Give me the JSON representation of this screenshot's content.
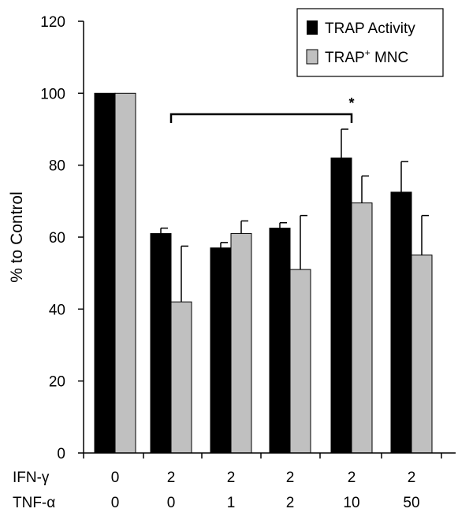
{
  "chart_data": {
    "type": "bar",
    "ylabel": "% to Control",
    "ylim": [
      0,
      120
    ],
    "yticks": [
      "0",
      "20",
      "40",
      "60",
      "80",
      "100",
      "120"
    ],
    "row_labels": [
      "IFN-γ",
      "TNF-α"
    ],
    "groups": [
      {
        "ifn": "0",
        "tnf": "0"
      },
      {
        "ifn": "2",
        "tnf": "0"
      },
      {
        "ifn": "2",
        "tnf": "1"
      },
      {
        "ifn": "2",
        "tnf": "2"
      },
      {
        "ifn": "2",
        "tnf": "10"
      },
      {
        "ifn": "2",
        "tnf": "50"
      }
    ],
    "series": [
      {
        "name": "TRAP Activity",
        "color": "#000000",
        "values": [
          100,
          61,
          57,
          62.5,
          82,
          72.5
        ],
        "errors": [
          0,
          1.5,
          1.5,
          1.5,
          8,
          8.5
        ]
      },
      {
        "name_main": "TRAP",
        "name_sup": "+",
        "name_rest": " MNC",
        "color": "#c0c0c0",
        "values": [
          100,
          42,
          61,
          51,
          69.5,
          55
        ],
        "errors": [
          0,
          15.5,
          3.5,
          15,
          7.5,
          11
        ]
      }
    ],
    "significance": {
      "label": "*",
      "from_group": 1,
      "to_group": 4
    },
    "legend_position": "top-right"
  }
}
